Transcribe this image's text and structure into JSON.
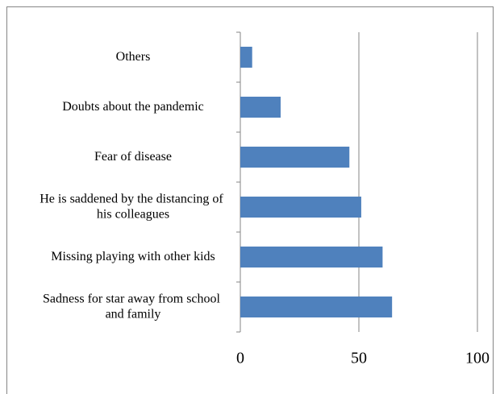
{
  "chart_data": {
    "type": "barh",
    "categories": [
      "Others",
      "Doubts about the pandemic",
      "Fear of disease",
      "He is saddened by the distancing of his colleagues",
      "Missing playing with other kids",
      "Sadness for star away from school and family"
    ],
    "values": [
      5,
      17,
      46,
      51,
      60,
      64
    ],
    "color": "#4f81bd",
    "xlim": [
      0,
      100
    ],
    "xticks": [
      0,
      50,
      100
    ],
    "grid": true
  }
}
